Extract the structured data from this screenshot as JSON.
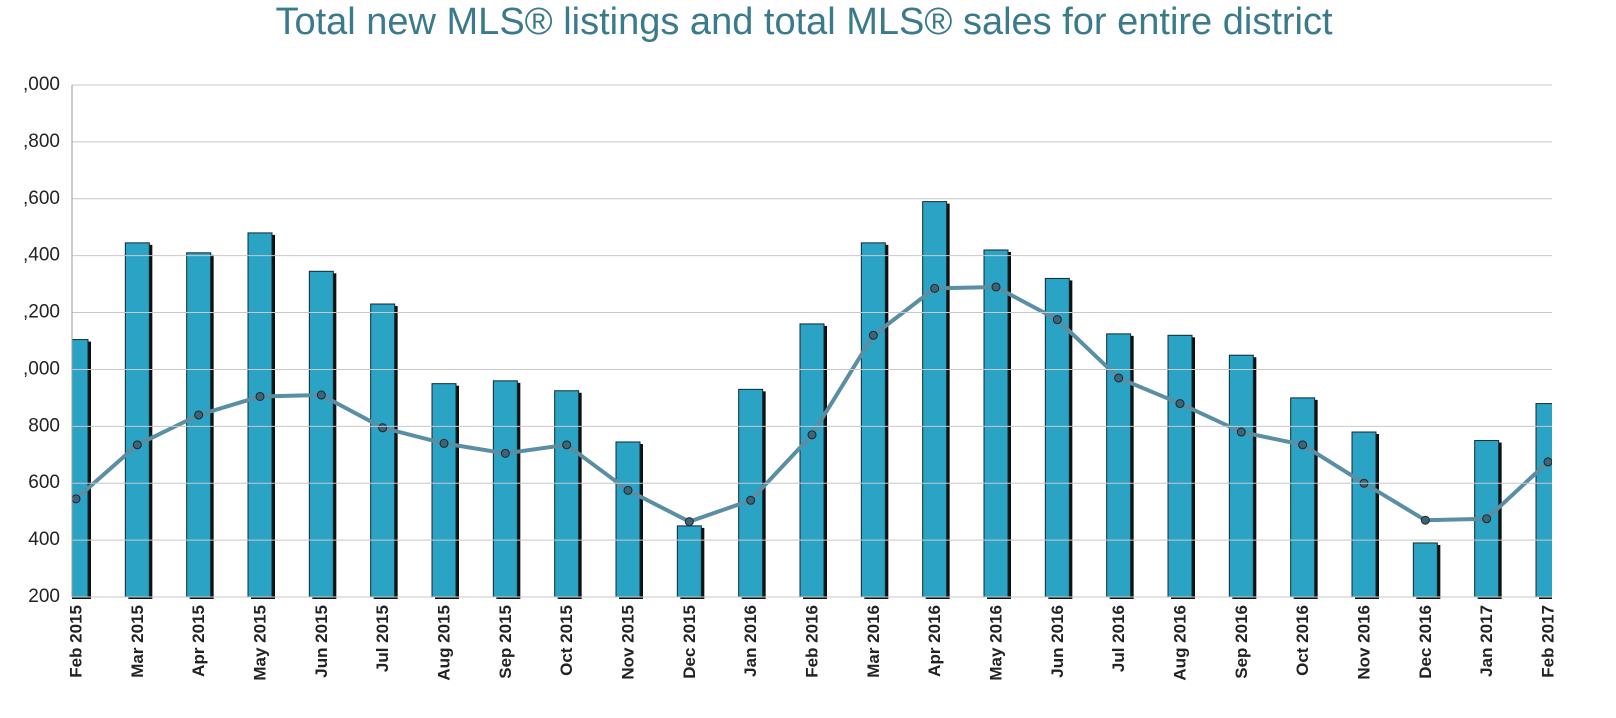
{
  "chart_data": {
    "type": "bar_line",
    "title": "Total new MLS® listings and total MLS® sales for entire district",
    "categories": [
      "Feb 2015",
      "Mar 2015",
      "Apr 2015",
      "May 2015",
      "Jun 2015",
      "Jul 2015",
      "Aug 2015",
      "Sep 2015",
      "Oct 2015",
      "Nov 2015",
      "Dec 2015",
      "Jan 2016",
      "Feb 2016",
      "Mar 2016",
      "Apr 2016",
      "May 2016",
      "Jun 2016",
      "Jul 2016",
      "Aug 2016",
      "Sep 2016",
      "Oct 2016",
      "Nov 2016",
      "Dec 2016",
      "Jan 2017",
      "Feb 2017"
    ],
    "series": [
      {
        "type": "bar",
        "color": "#2aa3c4",
        "values": [
          1105,
          1445,
          1410,
          1480,
          1345,
          1230,
          950,
          960,
          925,
          745,
          450,
          930,
          1160,
          1445,
          1590,
          1420,
          1320,
          1125,
          1120,
          1050,
          900,
          780,
          390,
          750,
          880
        ]
      },
      {
        "type": "line",
        "color": "#5a8fa3",
        "values": [
          545,
          735,
          840,
          905,
          910,
          795,
          740,
          705,
          735,
          575,
          465,
          540,
          770,
          1120,
          1285,
          1290,
          1175,
          970,
          880,
          780,
          735,
          600,
          470,
          475,
          675
        ]
      }
    ],
    "ylim": [
      200,
      2000
    ],
    "yticks": [
      200,
      400,
      600,
      800,
      {
        "value": 1000,
        "label": ",000"
      },
      {
        "value": 1200,
        "label": ",200"
      },
      {
        "value": 1400,
        "label": ",400"
      },
      {
        "value": 1600,
        "label": ",600"
      },
      {
        "value": 1800,
        "label": ",800"
      },
      {
        "value": 2000,
        "label": ",000"
      }
    ],
    "grid": true
  }
}
